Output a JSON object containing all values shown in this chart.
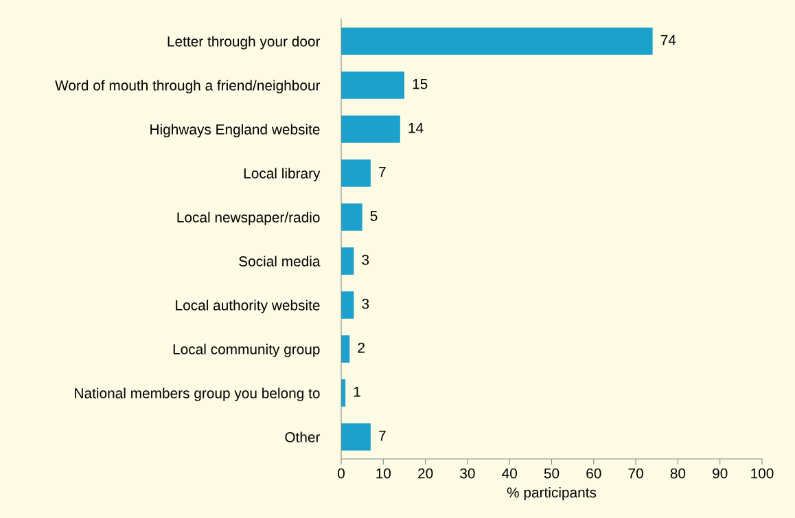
{
  "chart_data": {
    "type": "bar",
    "orientation": "horizontal",
    "xlabel": "% participants",
    "categories": [
      "Letter through your door",
      "Word of mouth through a friend/neighbour",
      "Highways England website",
      "Local library",
      "Local newspaper/radio",
      "Social media",
      "Local authority website",
      "Local community group",
      "National members group you belong to",
      "Other"
    ],
    "values": [
      74,
      15,
      14,
      7,
      5,
      3,
      3,
      2,
      1,
      7
    ],
    "color": "#1ba1cb",
    "xlim": [
      0,
      100
    ],
    "xticks": [
      0,
      10,
      20,
      30,
      40,
      50,
      60,
      70,
      80,
      90,
      100
    ],
    "data_labels": true,
    "grid": false,
    "legend": false
  }
}
